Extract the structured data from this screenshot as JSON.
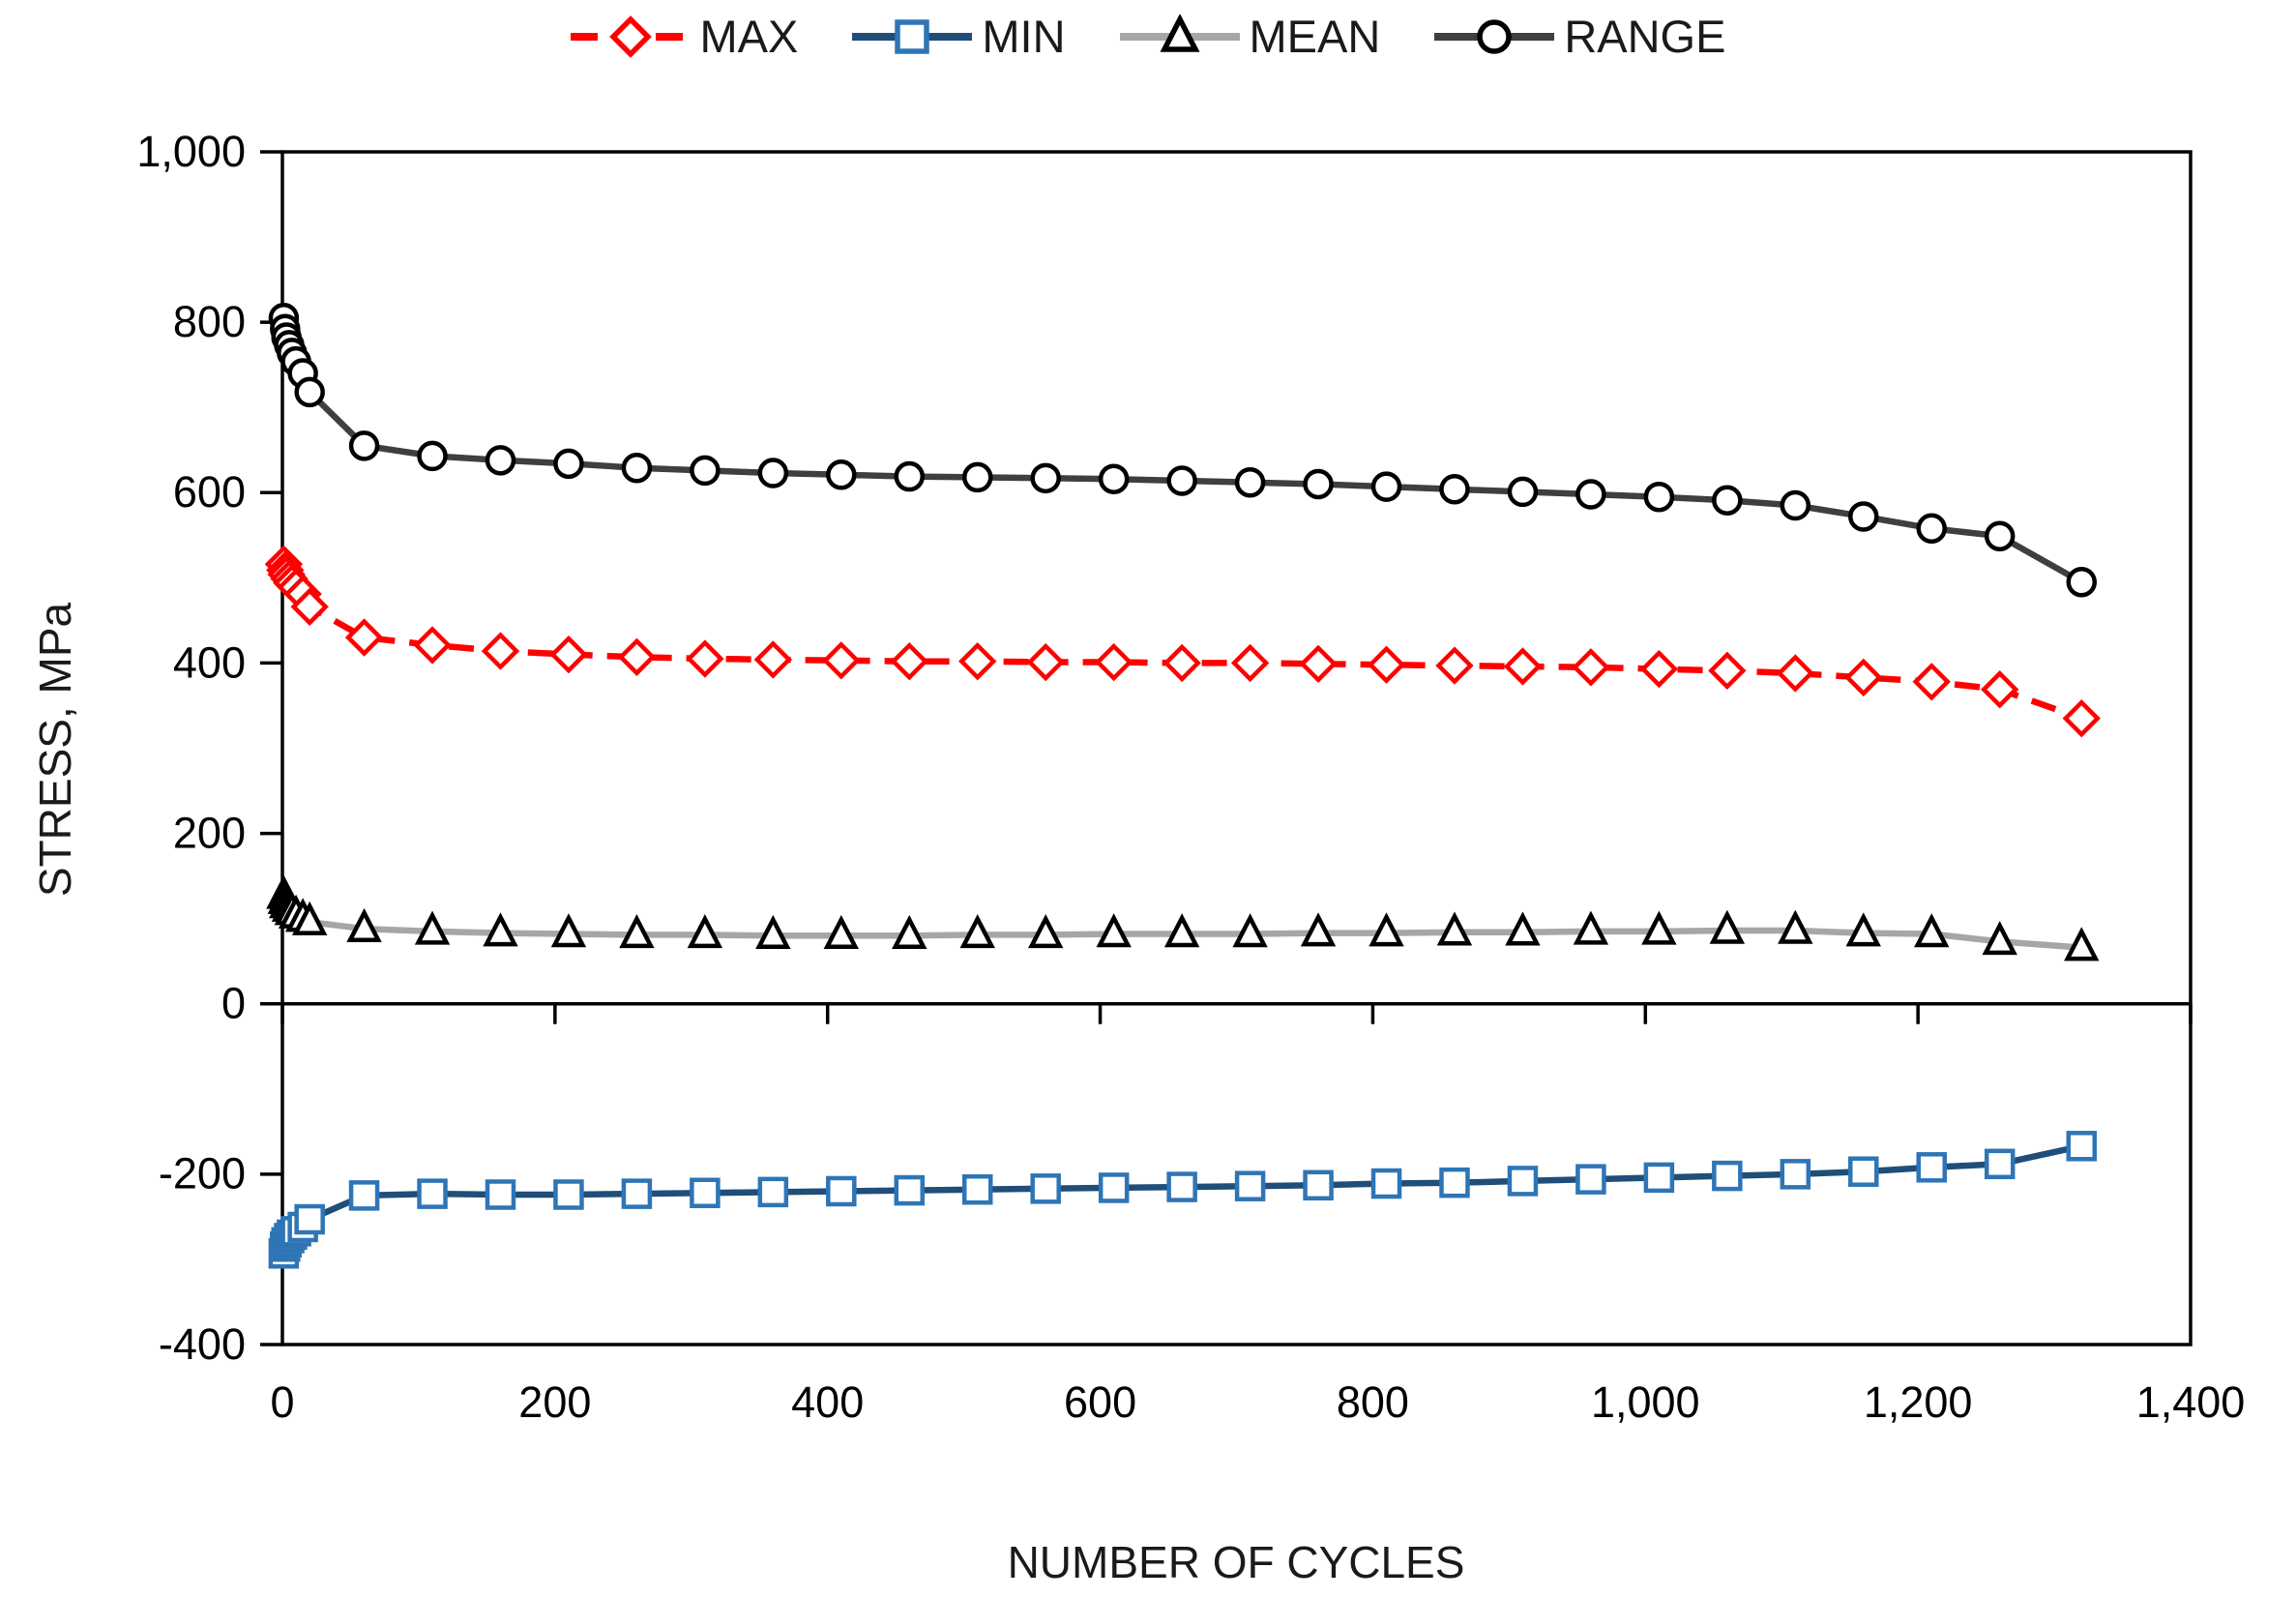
{
  "axes": {
    "x_title": "NUMBER OF CYCLES",
    "y_title": "STRESS, MPa",
    "x_ticks": [
      0,
      200,
      400,
      600,
      800,
      1000,
      1200,
      1400
    ],
    "x_tick_labels": [
      "0",
      "200",
      "400",
      "600",
      "800",
      "1,000",
      "1,200",
      "1,400"
    ],
    "y_ticks": [
      -400,
      -200,
      0,
      200,
      400,
      600,
      800,
      1000
    ],
    "y_tick_labels": [
      "-400",
      "-200",
      "0",
      "200",
      "400",
      "600",
      "800",
      "1,000"
    ]
  },
  "chart_data": {
    "type": "line",
    "title": "",
    "xlabel": "NUMBER OF CYCLES",
    "ylabel": "STRESS, MPa",
    "xlim": [
      0,
      1400
    ],
    "ylim": [
      -400,
      1000
    ],
    "grid": false,
    "legend_position": "top-center",
    "x": [
      1,
      2,
      3,
      5,
      7,
      10,
      15,
      20,
      60,
      110,
      160,
      210,
      260,
      310,
      360,
      410,
      460,
      510,
      560,
      610,
      660,
      710,
      760,
      810,
      860,
      910,
      960,
      1010,
      1060,
      1110,
      1160,
      1210,
      1260,
      1320
    ],
    "series": [
      {
        "name": "MAX",
        "color": "#fe0000",
        "marker": "diamond",
        "marker_stroke": "#fe0000",
        "line_style": "dashed",
        "values": [
          516,
          509,
          504,
          499,
          494,
          489,
          481,
          466,
          430,
          421,
          414,
          410,
          407,
          405,
          404,
          403,
          402,
          402,
          401,
          401,
          400,
          400,
          399,
          398,
          397,
          396,
          395,
          393,
          391,
          388,
          383,
          378,
          369,
          335
        ]
      },
      {
        "name": "MIN",
        "color": "#1f4e79",
        "marker": "square",
        "marker_stroke": "#2e75b6",
        "line_style": "solid",
        "values": [
          -293,
          -285,
          -280,
          -275,
          -271,
          -267,
          -262,
          -253,
          -225,
          -223,
          -224,
          -224,
          -223,
          -222,
          -221,
          -220,
          -219,
          -218,
          -217,
          -216,
          -215,
          -214,
          -213,
          -211,
          -210,
          -208,
          -206,
          -204,
          -202,
          -200,
          -197,
          -192,
          -188,
          -167
        ]
      },
      {
        "name": "MEAN",
        "color": "#a6a6a6",
        "marker": "triangle",
        "marker_stroke": "#000000",
        "line_style": "solid",
        "values": [
          127,
          121,
          116,
          112,
          108,
          104,
          100,
          96,
          88,
          85,
          83,
          82,
          81,
          81,
          80,
          80,
          80,
          81,
          81,
          82,
          82,
          82,
          83,
          83,
          84,
          84,
          85,
          85,
          86,
          86,
          83,
          82,
          73,
          66
        ]
      },
      {
        "name": "RANGE",
        "color": "#3f3f3f",
        "marker": "circle",
        "marker_stroke": "#000000",
        "line_style": "solid",
        "values": [
          805,
          792,
          782,
          773,
          764,
          754,
          740,
          718,
          655,
          643,
          638,
          634,
          629,
          626,
          623,
          621,
          619,
          618,
          617,
          616,
          614,
          612,
          610,
          607,
          604,
          601,
          598,
          595,
          591,
          585,
          572,
          558,
          549,
          495
        ]
      }
    ]
  }
}
